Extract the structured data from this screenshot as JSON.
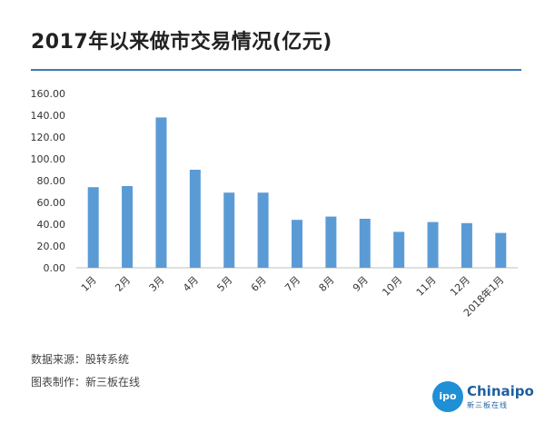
{
  "page_title": "2017年以来做市交易情况(亿元)",
  "footer": {
    "source": "数据来源：股转系统",
    "maker": "图表制作：新三板在线"
  },
  "logo": {
    "circle_text": "ipo",
    "brand": "Chinaipo",
    "sub": "新三板在线"
  },
  "colors": {
    "bar": "#5b9bd5",
    "rule": "#3a78b8"
  },
  "chart_data": {
    "type": "bar",
    "title": "2017年以来做市交易情况(亿元)",
    "categories": [
      "1月",
      "2月",
      "3月",
      "4月",
      "5月",
      "6月",
      "7月",
      "8月",
      "9月",
      "10月",
      "11月",
      "12月",
      "2018年1月"
    ],
    "values": [
      74,
      75,
      138,
      90,
      69,
      69,
      44,
      47,
      45,
      33,
      42,
      41,
      32
    ],
    "yticks": [
      "0.00",
      "20.00",
      "40.00",
      "60.00",
      "80.00",
      "100.00",
      "120.00",
      "140.00",
      "160.00"
    ],
    "ylim": [
      0,
      160
    ],
    "grid": false,
    "legend": "none"
  }
}
